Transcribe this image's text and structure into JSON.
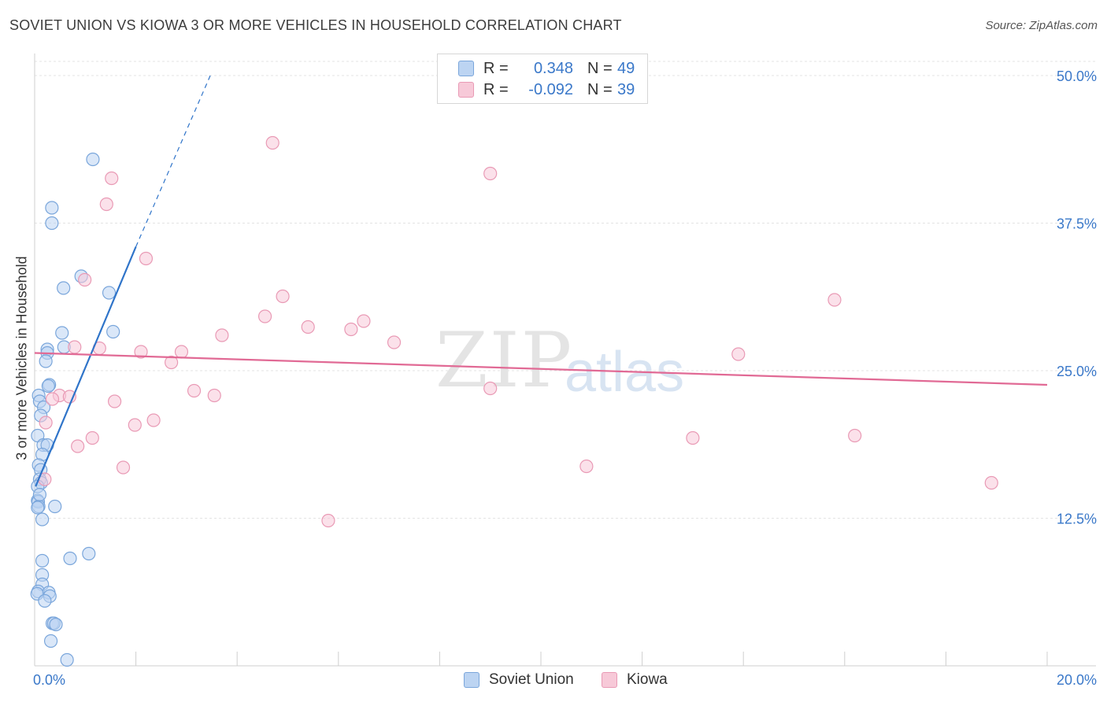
{
  "header": {
    "title": "SOVIET UNION VS KIOWA 3 OR MORE VEHICLES IN HOUSEHOLD CORRELATION CHART",
    "source": "Source: ZipAtlas.com"
  },
  "legend": {
    "r_label": "R =",
    "n_label": "N =",
    "rows": [
      {
        "r": "0.348",
        "n": "49"
      },
      {
        "r": "-0.092",
        "n": "39"
      }
    ]
  },
  "bottom_legend": [
    "Soviet Union",
    "Kiowa"
  ],
  "watermark": {
    "zip": "ZIP",
    "atlas": "atlas"
  },
  "colors": {
    "soviet_fill": "#bcd4f2",
    "soviet_stroke": "#7aa6db",
    "soviet_line": "#2f74c9",
    "kiowa_fill": "#f7c9d8",
    "kiowa_stroke": "#e99ab5",
    "kiowa_line": "#e16a95",
    "axis_label": "#3a78c9",
    "grid": "#e3e3e3"
  },
  "chart_data": {
    "type": "scatter",
    "title": "SOVIET UNION VS KIOWA 3 OR MORE VEHICLES IN HOUSEHOLD CORRELATION CHART",
    "xlabel": "",
    "ylabel": "3 or more Vehicles in Household",
    "xlim": [
      0,
      20
    ],
    "ylim": [
      0,
      50
    ],
    "x_tick_labels": [
      {
        "value": 0,
        "label": "0.0%"
      },
      {
        "value": 20,
        "label": "20.0%"
      }
    ],
    "y_tick_labels": [
      {
        "value": 12.5,
        "label": "12.5%"
      },
      {
        "value": 25.0,
        "label": "25.0%"
      },
      {
        "value": 37.5,
        "label": "37.5%"
      },
      {
        "value": 50.0,
        "label": "50.0%"
      }
    ],
    "grid": true,
    "legend_position": "top-center",
    "series": [
      {
        "name": "Soviet Union",
        "stats": {
          "R": 0.348,
          "N": 49
        },
        "trend": {
          "x0": 0.02,
          "y0": 15.2,
          "x1": 2.0,
          "y1": 35.5,
          "dash_to": {
            "x": 3.5,
            "y": 50.3
          }
        },
        "points": [
          [
            1.15,
            42.9
          ],
          [
            0.34,
            38.8
          ],
          [
            0.34,
            37.5
          ],
          [
            0.92,
            33.0
          ],
          [
            0.57,
            32.0
          ],
          [
            1.47,
            31.6
          ],
          [
            0.54,
            28.2
          ],
          [
            1.55,
            28.3
          ],
          [
            0.58,
            27.0
          ],
          [
            0.25,
            26.8
          ],
          [
            0.25,
            26.5
          ],
          [
            0.22,
            25.8
          ],
          [
            0.29,
            23.8
          ],
          [
            0.27,
            23.7
          ],
          [
            0.08,
            22.9
          ],
          [
            0.1,
            22.4
          ],
          [
            0.18,
            21.9
          ],
          [
            0.12,
            21.2
          ],
          [
            0.06,
            19.5
          ],
          [
            0.17,
            18.7
          ],
          [
            0.25,
            18.7
          ],
          [
            0.15,
            17.9
          ],
          [
            0.08,
            17.0
          ],
          [
            0.12,
            16.6
          ],
          [
            0.1,
            15.8
          ],
          [
            0.13,
            15.5
          ],
          [
            0.06,
            15.2
          ],
          [
            0.06,
            14.0
          ],
          [
            0.07,
            13.9
          ],
          [
            0.08,
            13.5
          ],
          [
            0.4,
            13.5
          ],
          [
            0.06,
            13.4
          ],
          [
            0.15,
            12.4
          ],
          [
            1.07,
            9.5
          ],
          [
            0.7,
            9.1
          ],
          [
            0.15,
            8.9
          ],
          [
            0.15,
            7.7
          ],
          [
            0.15,
            6.9
          ],
          [
            0.07,
            6.3
          ],
          [
            0.28,
            6.2
          ],
          [
            0.3,
            5.9
          ],
          [
            0.05,
            6.1
          ],
          [
            0.35,
            3.6
          ],
          [
            0.38,
            3.6
          ],
          [
            0.42,
            3.5
          ],
          [
            0.32,
            2.1
          ],
          [
            0.64,
            0.5
          ],
          [
            0.2,
            5.5
          ],
          [
            0.1,
            14.5
          ]
        ]
      },
      {
        "name": "Kiowa",
        "stats": {
          "R": -0.092,
          "N": 39
        },
        "trend": {
          "x0": 0.0,
          "y0": 26.5,
          "x1": 20.0,
          "y1": 23.8
        },
        "points": [
          [
            4.7,
            44.3
          ],
          [
            9.0,
            41.7
          ],
          [
            1.52,
            41.3
          ],
          [
            1.42,
            39.1
          ],
          [
            2.2,
            34.5
          ],
          [
            0.99,
            32.7
          ],
          [
            4.9,
            31.3
          ],
          [
            15.8,
            31.0
          ],
          [
            4.55,
            29.6
          ],
          [
            5.4,
            28.7
          ],
          [
            6.5,
            29.2
          ],
          [
            6.25,
            28.5
          ],
          [
            3.7,
            28.0
          ],
          [
            7.1,
            27.4
          ],
          [
            0.79,
            27.0
          ],
          [
            1.28,
            26.9
          ],
          [
            2.1,
            26.6
          ],
          [
            2.9,
            26.6
          ],
          [
            13.9,
            26.4
          ],
          [
            2.7,
            25.7
          ],
          [
            9.0,
            23.5
          ],
          [
            3.15,
            23.3
          ],
          [
            3.55,
            22.9
          ],
          [
            0.49,
            22.9
          ],
          [
            0.69,
            22.8
          ],
          [
            0.35,
            22.6
          ],
          [
            1.58,
            22.4
          ],
          [
            2.35,
            20.8
          ],
          [
            1.98,
            20.4
          ],
          [
            0.22,
            20.6
          ],
          [
            1.14,
            19.3
          ],
          [
            13.0,
            19.3
          ],
          [
            16.2,
            19.5
          ],
          [
            0.85,
            18.6
          ],
          [
            1.75,
            16.8
          ],
          [
            10.9,
            16.9
          ],
          [
            0.2,
            15.8
          ],
          [
            18.9,
            15.5
          ],
          [
            5.8,
            12.3
          ]
        ]
      }
    ]
  }
}
